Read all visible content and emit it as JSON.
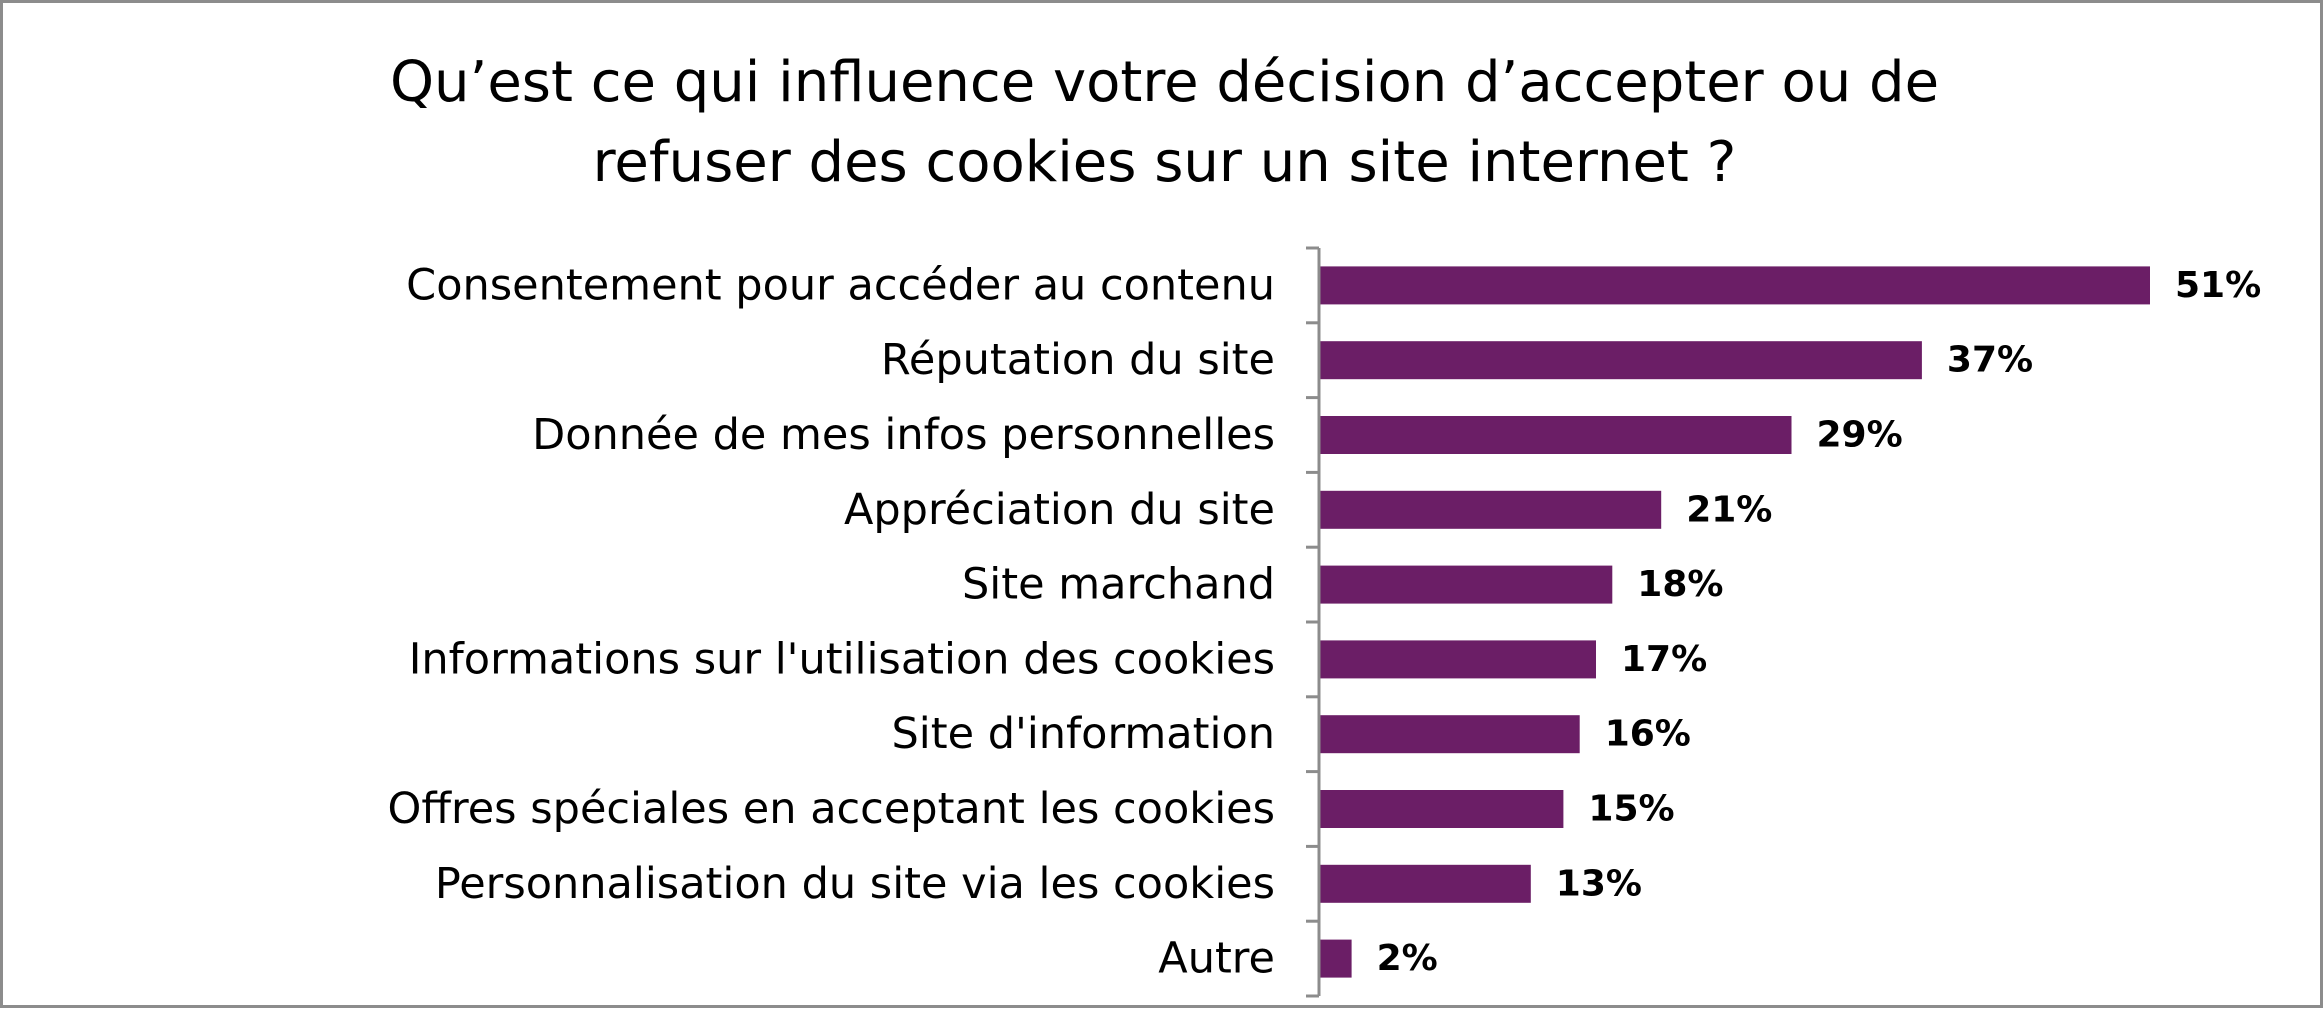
{
  "chart_data": {
    "type": "bar",
    "orientation": "horizontal",
    "title": "Qu’est ce qui influence votre décision d’accepter ou de refuser des cookies sur un site internet ?",
    "title_lines": [
      "Qu’est ce qui influence votre décision d’accepter ou de",
      "refuser des cookies sur un site internet ?"
    ],
    "categories": [
      "Consentement pour accéder au contenu",
      "Réputation du site",
      "Donnée de mes infos personnelles",
      "Appréciation du site",
      "Site marchand",
      "Informations sur l'utilisation des cookies",
      "Site d'information",
      "Offres spéciales en acceptant les cookies",
      "Personnalisation du site via les cookies",
      "Autre"
    ],
    "values": [
      51,
      37,
      29,
      21,
      18,
      17,
      16,
      15,
      13,
      2
    ],
    "value_labels": [
      "51%",
      "37%",
      "29%",
      "21%",
      "18%",
      "17%",
      "16%",
      "15%",
      "13%",
      "2%"
    ],
    "unit": "%",
    "xlim": [
      0,
      51
    ],
    "grid": false,
    "legend": "none",
    "bar_color": "#6b1e66",
    "axis_color": "#8c8c8c"
  }
}
